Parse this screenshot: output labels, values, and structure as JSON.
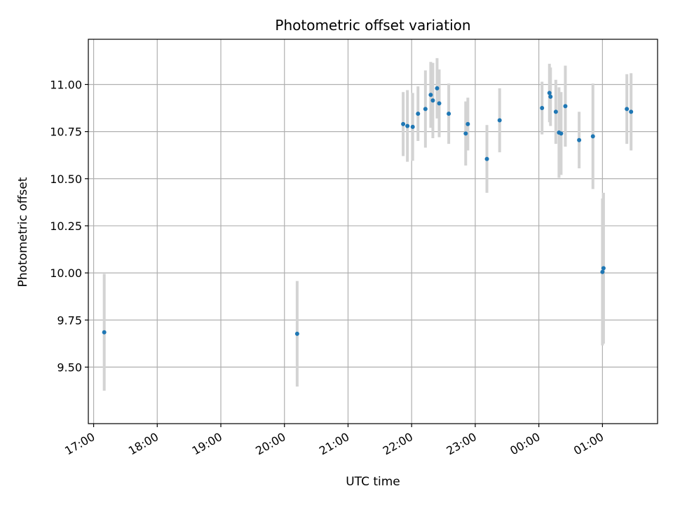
{
  "chart_data": {
    "type": "scatter",
    "title": "Photometric offset variation",
    "xlabel": "UTC time",
    "ylabel": "Photometric offset",
    "x_start_date": "2023-01-01",
    "xlim": [
      "2023-01-01T16:55",
      "2023-01-02T01:52"
    ],
    "ylim": [
      9.2,
      11.24
    ],
    "x_ticks": [
      {
        "t": "2023-01-01T17:00",
        "label": "17:00"
      },
      {
        "t": "2023-01-01T18:00",
        "label": "18:00"
      },
      {
        "t": "2023-01-01T19:00",
        "label": "19:00"
      },
      {
        "t": "2023-01-01T20:00",
        "label": "20:00"
      },
      {
        "t": "2023-01-01T21:00",
        "label": "21:00"
      },
      {
        "t": "2023-01-01T22:00",
        "label": "22:00"
      },
      {
        "t": "2023-01-01T23:00",
        "label": "23:00"
      },
      {
        "t": "2023-01-02T00:00",
        "label": "00:00"
      },
      {
        "t": "2023-01-02T01:00",
        "label": "01:00"
      }
    ],
    "y_ticks": [
      {
        "v": 9.5,
        "label": "9.50"
      },
      {
        "v": 9.75,
        "label": "9.75"
      },
      {
        "v": 10.0,
        "label": "10.00"
      },
      {
        "v": 10.25,
        "label": "10.25"
      },
      {
        "v": 10.5,
        "label": "10.50"
      },
      {
        "v": 10.75,
        "label": "10.75"
      },
      {
        "v": 11.0,
        "label": "11.00"
      }
    ],
    "grid": true,
    "point_color": "#1f77b4",
    "errorbar_color": "#d3d3d3",
    "points": [
      {
        "t": "2023-01-01T17:10",
        "y": 9.685,
        "err": 0.31
      },
      {
        "t": "2023-01-01T20:12",
        "y": 9.677,
        "err": 0.28
      },
      {
        "t": "2023-01-01T21:52",
        "y": 10.79,
        "err": 0.17
      },
      {
        "t": "2023-01-01T21:56",
        "y": 10.78,
        "err": 0.19
      },
      {
        "t": "2023-01-01T22:01",
        "y": 10.775,
        "err": 0.18
      },
      {
        "t": "2023-01-01T22:06",
        "y": 10.845,
        "err": 0.145
      },
      {
        "t": "2023-01-01T22:13",
        "y": 10.87,
        "err": 0.205
      },
      {
        "t": "2023-01-01T22:18",
        "y": 10.945,
        "err": 0.175
      },
      {
        "t": "2023-01-01T22:20",
        "y": 10.915,
        "err": 0.2
      },
      {
        "t": "2023-01-01T22:24",
        "y": 10.98,
        "err": 0.16
      },
      {
        "t": "2023-01-01T22:26",
        "y": 10.9,
        "err": 0.18
      },
      {
        "t": "2023-01-01T22:35",
        "y": 10.845,
        "err": 0.16
      },
      {
        "t": "2023-01-01T22:51",
        "y": 10.74,
        "err": 0.17
      },
      {
        "t": "2023-01-01T22:53",
        "y": 10.79,
        "err": 0.14
      },
      {
        "t": "2023-01-01T23:11",
        "y": 10.605,
        "err": 0.18
      },
      {
        "t": "2023-01-01T23:23",
        "y": 10.81,
        "err": 0.17
      },
      {
        "t": "2023-01-02T00:03",
        "y": 10.875,
        "err": 0.14
      },
      {
        "t": "2023-01-02T00:10",
        "y": 10.955,
        "err": 0.155
      },
      {
        "t": "2023-01-02T00:11",
        "y": 10.935,
        "err": 0.155
      },
      {
        "t": "2023-01-02T00:16",
        "y": 10.855,
        "err": 0.17
      },
      {
        "t": "2023-01-02T00:19",
        "y": 10.745,
        "err": 0.24
      },
      {
        "t": "2023-01-02T00:21",
        "y": 10.74,
        "err": 0.22
      },
      {
        "t": "2023-01-02T00:25",
        "y": 10.885,
        "err": 0.215
      },
      {
        "t": "2023-01-02T00:38",
        "y": 10.705,
        "err": 0.15
      },
      {
        "t": "2023-01-02T00:51",
        "y": 10.725,
        "err": 0.28
      },
      {
        "t": "2023-01-02T01:00",
        "y": 10.005,
        "err": 0.39
      },
      {
        "t": "2023-01-02T01:01",
        "y": 10.025,
        "err": 0.4
      },
      {
        "t": "2023-01-02T01:23",
        "y": 10.87,
        "err": 0.185
      },
      {
        "t": "2023-01-02T01:27",
        "y": 10.855,
        "err": 0.205
      }
    ]
  }
}
